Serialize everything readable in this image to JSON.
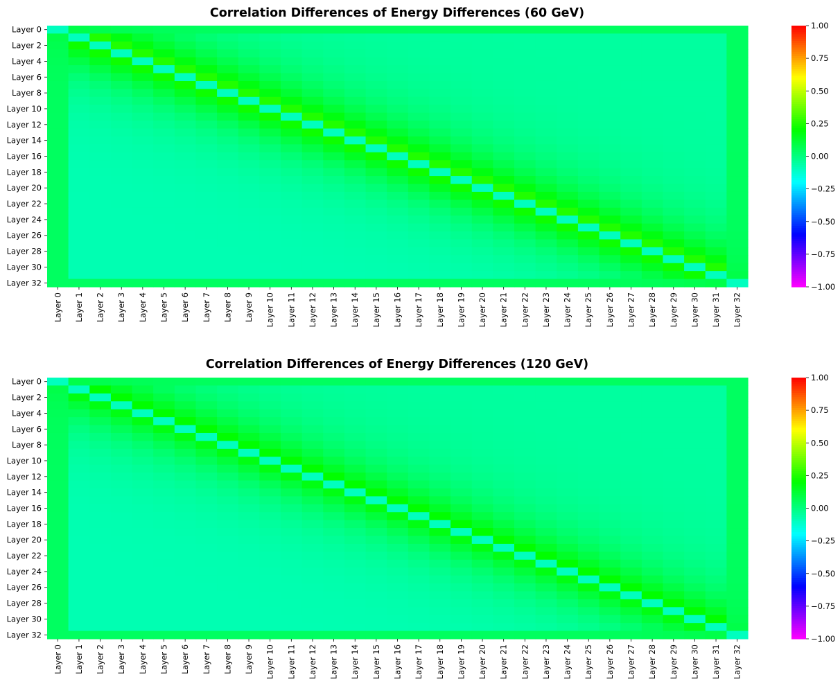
{
  "chart_data": [
    {
      "type": "heatmap",
      "title": "Correlation Differences of Energy Differences (60 GeV)",
      "xlabel": "",
      "ylabel": "",
      "n_layers": 33,
      "x_tick_labels": [
        "Layer 0",
        "Layer 1",
        "Layer 2",
        "Layer 3",
        "Layer 4",
        "Layer 5",
        "Layer 6",
        "Layer 7",
        "Layer 8",
        "Layer 9",
        "Layer 10",
        "Layer 11",
        "Layer 12",
        "Layer 13",
        "Layer 14",
        "Layer 15",
        "Layer 16",
        "Layer 17",
        "Layer 18",
        "Layer 19",
        "Layer 20",
        "Layer 21",
        "Layer 22",
        "Layer 23",
        "Layer 24",
        "Layer 25",
        "Layer 26",
        "Layer 27",
        "Layer 28",
        "Layer 29",
        "Layer 30",
        "Layer 31",
        "Layer 32"
      ],
      "y_tick_labels": [
        "Layer 0",
        "Layer 2",
        "Layer 4",
        "Layer 6",
        "Layer 8",
        "Layer 10",
        "Layer 12",
        "Layer 14",
        "Layer 16",
        "Layer 18",
        "Layer 20",
        "Layer 22",
        "Layer 24",
        "Layer 26",
        "Layer 28",
        "Layer 30",
        "Layer 32"
      ],
      "colorbar": {
        "vmin": -1.0,
        "vmax": 1.0,
        "colormap": "hsv",
        "ticks": [
          "1.00",
          "0.75",
          "0.50",
          "0.25",
          "0.00",
          "−0.25",
          "−0.50",
          "−0.75",
          "−1.00"
        ]
      },
      "approx_values": {
        "diagonal": -0.1,
        "near_diagonal_peak": 0.3,
        "bulk_upper_triangle": -0.05,
        "bulk_lower_triangle": -0.08,
        "edges": 0.05
      },
      "colors": {
        "diagonal": "#00ffbe",
        "near_diagonal": "#5cff00",
        "background": "#00ffb0"
      }
    },
    {
      "type": "heatmap",
      "title": "Correlation Differences of Energy Differences (120 GeV)",
      "xlabel": "",
      "ylabel": "",
      "n_layers": 33,
      "x_tick_labels": [
        "Layer 0",
        "Layer 1",
        "Layer 2",
        "Layer 3",
        "Layer 4",
        "Layer 5",
        "Layer 6",
        "Layer 7",
        "Layer 8",
        "Layer 9",
        "Layer 10",
        "Layer 11",
        "Layer 12",
        "Layer 13",
        "Layer 14",
        "Layer 15",
        "Layer 16",
        "Layer 17",
        "Layer 18",
        "Layer 19",
        "Layer 20",
        "Layer 21",
        "Layer 22",
        "Layer 23",
        "Layer 24",
        "Layer 25",
        "Layer 26",
        "Layer 27",
        "Layer 28",
        "Layer 29",
        "Layer 30",
        "Layer 31",
        "Layer 32"
      ],
      "y_tick_labels": [
        "Layer 0",
        "Layer 2",
        "Layer 4",
        "Layer 6",
        "Layer 8",
        "Layer 10",
        "Layer 12",
        "Layer 14",
        "Layer 16",
        "Layer 18",
        "Layer 20",
        "Layer 22",
        "Layer 24",
        "Layer 26",
        "Layer 28",
        "Layer 30",
        "Layer 32"
      ],
      "colorbar": {
        "vmin": -1.0,
        "vmax": 1.0,
        "colormap": "hsv",
        "ticks": [
          "1.00",
          "0.75",
          "0.50",
          "0.25",
          "0.00",
          "−0.25",
          "−0.50",
          "−0.75",
          "−1.00"
        ]
      },
      "approx_values": {
        "diagonal": -0.1,
        "near_diagonal_peak": 0.25,
        "bulk_upper_triangle": -0.05,
        "bulk_lower_triangle": -0.08,
        "edges": 0.05
      },
      "colors": {
        "diagonal": "#00ffbe",
        "near_diagonal": "#2cff00",
        "background": "#00ffb0"
      }
    }
  ]
}
